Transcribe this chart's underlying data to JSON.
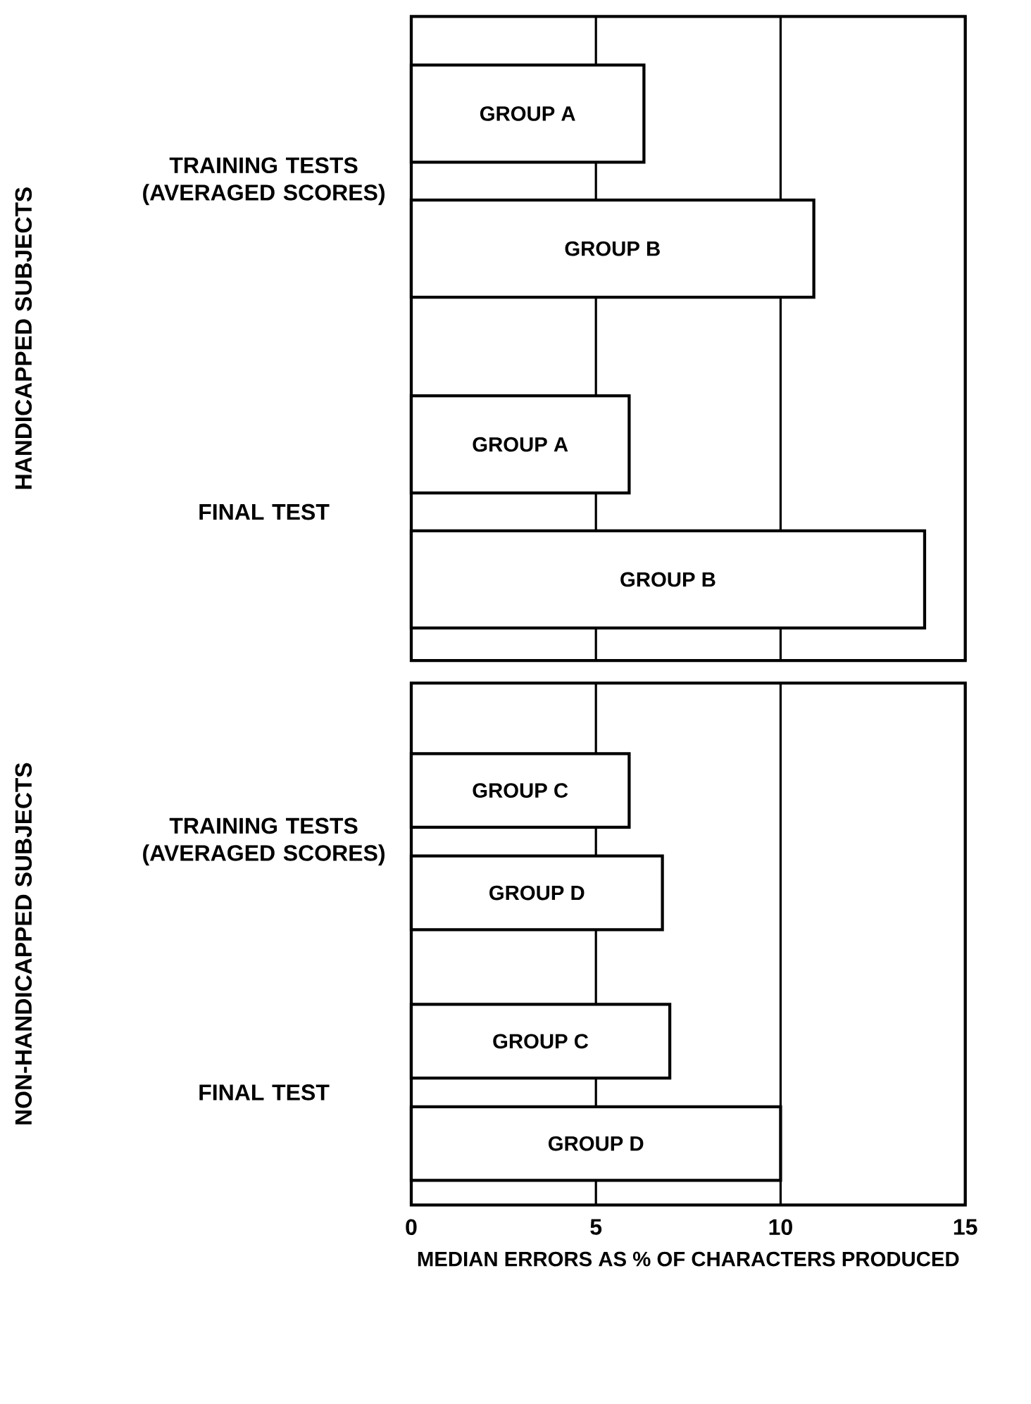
{
  "chart_data": [
    {
      "type": "bar",
      "orientation": "horizontal",
      "ylabel": "HANDICAPPED SUBJECTS",
      "categories": [
        "GROUP A",
        "GROUP B",
        "GROUP A",
        "GROUP B"
      ],
      "values": [
        6.3,
        10.9,
        5.9,
        13.9
      ],
      "color": "#ffffff",
      "xlim": [
        0,
        15
      ],
      "xticks": [
        0,
        5,
        10,
        15
      ],
      "grid": "x",
      "tick_labels": false,
      "annotations": [
        "TRAINING TESTS (AVERAGED SCORES)",
        "FINAL TEST"
      ]
    },
    {
      "type": "bar",
      "orientation": "horizontal",
      "ylabel": "NON-HANDICAPPED SUBJECTS",
      "xlabel": "MEDIAN ERRORS AS % OF CHARACTERS PRODUCED",
      "categories": [
        "GROUP C",
        "GROUP D",
        "GROUP C",
        "GROUP D"
      ],
      "values": [
        5.9,
        6.8,
        7.0,
        10.0
      ],
      "color": "#ffffff",
      "xlim": [
        0,
        15
      ],
      "xticks": [
        0,
        5,
        10,
        15
      ],
      "grid": "x",
      "tick_labels": "x",
      "annotations": [
        "TRAINING TESTS (AVERAGED SCORES)",
        "FINAL TEST"
      ]
    }
  ]
}
